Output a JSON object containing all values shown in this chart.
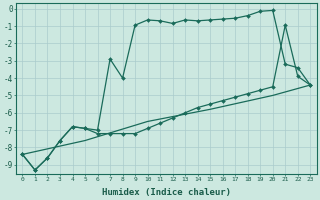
{
  "title": "",
  "xlabel": "Humidex (Indice chaleur)",
  "bg_color": "#cce8e0",
  "line_color": "#1a6b5a",
  "grid_color": "#aacccc",
  "xlim": [
    -0.5,
    23.5
  ],
  "ylim": [
    -9.5,
    0.3
  ],
  "yticks": [
    0,
    -1,
    -2,
    -3,
    -4,
    -5,
    -6,
    -7,
    -8,
    -9
  ],
  "xticks": [
    0,
    1,
    2,
    3,
    4,
    5,
    6,
    7,
    8,
    9,
    10,
    11,
    12,
    13,
    14,
    15,
    16,
    17,
    18,
    19,
    20,
    21,
    22,
    23
  ],
  "line1_x": [
    0,
    1,
    2,
    3,
    4,
    5,
    6,
    7,
    8,
    9,
    10,
    11,
    12,
    13,
    14,
    15,
    16,
    17,
    18,
    19,
    20,
    21,
    22,
    23
  ],
  "line1_y": [
    -8.4,
    -9.3,
    -8.6,
    -7.6,
    -6.8,
    -6.9,
    -7.0,
    -2.9,
    -4.0,
    -0.95,
    -0.65,
    -0.7,
    -0.85,
    -0.65,
    -0.7,
    -0.65,
    -0.6,
    -0.55,
    -0.4,
    -0.15,
    -0.1,
    -3.2,
    -3.4,
    -4.4
  ],
  "line2_x": [
    0,
    1,
    2,
    3,
    4,
    5,
    6,
    7,
    8,
    9,
    10,
    11,
    12,
    13,
    14,
    15,
    16,
    17,
    18,
    19,
    20,
    21,
    22,
    23
  ],
  "line2_y": [
    -8.4,
    -9.3,
    -8.6,
    -7.6,
    -6.8,
    -6.9,
    -7.2,
    -7.2,
    -7.2,
    -7.2,
    -6.9,
    -6.6,
    -6.3,
    -6.0,
    -5.7,
    -5.5,
    -5.3,
    -5.1,
    -4.9,
    -4.7,
    -4.5,
    -0.95,
    -3.9,
    -4.4
  ],
  "line3_x": [
    0,
    5,
    10,
    15,
    20,
    23
  ],
  "line3_y": [
    -8.4,
    -7.6,
    -6.5,
    -5.8,
    -5.0,
    -4.4
  ]
}
